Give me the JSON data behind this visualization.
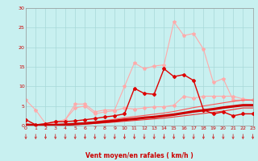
{
  "xlabel": "Vent moyen/en rafales ( km/h )",
  "xlim": [
    0,
    23
  ],
  "ylim": [
    0,
    30
  ],
  "yticks": [
    0,
    5,
    10,
    15,
    20,
    25,
    30
  ],
  "xticks": [
    0,
    1,
    2,
    3,
    4,
    5,
    6,
    7,
    8,
    9,
    10,
    11,
    12,
    13,
    14,
    15,
    16,
    17,
    18,
    19,
    20,
    21,
    22,
    23
  ],
  "background_color": "#c8f0f0",
  "grid_color": "#a8d8d8",
  "series": [
    {
      "x": [
        0,
        1,
        2,
        3,
        4,
        5,
        6,
        7,
        8,
        9,
        10,
        11,
        12,
        13,
        14,
        15,
        16,
        17,
        18,
        19,
        20,
        21,
        22,
        23
      ],
      "y": [
        6.5,
        4.0,
        0.5,
        1.0,
        1.5,
        5.5,
        5.5,
        3.5,
        4.0,
        4.0,
        10.0,
        16.0,
        14.5,
        15.2,
        15.5,
        26.5,
        23.0,
        23.5,
        19.5,
        11.0,
        12.0,
        6.5,
        6.5,
        6.5
      ],
      "color": "#ffaaaa",
      "marker": "*",
      "markersize": 3,
      "linewidth": 0.8,
      "zorder": 2
    },
    {
      "x": [
        0,
        1,
        2,
        3,
        4,
        5,
        6,
        7,
        8,
        9,
        10,
        11,
        12,
        13,
        14,
        15,
        16,
        17,
        18,
        19,
        20,
        21,
        22,
        23
      ],
      "y": [
        1.5,
        0.2,
        0.5,
        1.0,
        1.0,
        1.2,
        1.5,
        1.8,
        2.2,
        2.5,
        3.0,
        9.5,
        8.2,
        8.0,
        14.5,
        12.5,
        13.0,
        11.5,
        4.0,
        3.0,
        3.5,
        2.5,
        3.0,
        3.0
      ],
      "color": "#dd0000",
      "marker": "D",
      "markersize": 2,
      "linewidth": 1.0,
      "zorder": 4
    },
    {
      "x": [
        0,
        1,
        2,
        3,
        4,
        5,
        6,
        7,
        8,
        9,
        10,
        11,
        12,
        13,
        14,
        15,
        16,
        17,
        18,
        19,
        20,
        21,
        22,
        23
      ],
      "y": [
        0.5,
        0.1,
        0.2,
        0.8,
        1.5,
        4.5,
        5.0,
        3.0,
        3.5,
        3.8,
        4.5,
        4.2,
        4.5,
        4.8,
        4.8,
        5.2,
        7.5,
        7.0,
        7.5,
        7.5,
        7.5,
        7.5,
        6.8,
        6.5
      ],
      "color": "#ffaaaa",
      "marker": "D",
      "markersize": 2,
      "linewidth": 0.8,
      "zorder": 2
    },
    {
      "x": [
        0,
        1,
        2,
        3,
        4,
        5,
        6,
        7,
        8,
        9,
        10,
        11,
        12,
        13,
        14,
        15,
        16,
        17,
        18,
        19,
        20,
        21,
        22,
        23
      ],
      "y": [
        0.3,
        0.1,
        0.1,
        0.2,
        0.3,
        0.5,
        0.7,
        1.0,
        1.3,
        1.6,
        2.0,
        2.3,
        2.6,
        2.9,
        3.2,
        3.6,
        4.1,
        4.6,
        5.0,
        5.4,
        5.8,
        6.2,
        6.5,
        6.5
      ],
      "color": "#ff5555",
      "marker": null,
      "markersize": 0,
      "linewidth": 0.8,
      "zorder": 3
    },
    {
      "x": [
        0,
        1,
        2,
        3,
        4,
        5,
        6,
        7,
        8,
        9,
        10,
        11,
        12,
        13,
        14,
        15,
        16,
        17,
        18,
        19,
        20,
        21,
        22,
        23
      ],
      "y": [
        0.2,
        0.1,
        0.1,
        0.15,
        0.25,
        0.4,
        0.55,
        0.75,
        1.0,
        1.2,
        1.5,
        1.7,
        2.0,
        2.2,
        2.5,
        2.8,
        3.2,
        3.6,
        3.9,
        4.2,
        4.6,
        4.9,
        5.2,
        5.2
      ],
      "color": "#cc0000",
      "marker": null,
      "markersize": 0,
      "linewidth": 2.2,
      "zorder": 5
    },
    {
      "x": [
        0,
        1,
        2,
        3,
        4,
        5,
        6,
        7,
        8,
        9,
        10,
        11,
        12,
        13,
        14,
        15,
        16,
        17,
        18,
        19,
        20,
        21,
        22,
        23
      ],
      "y": [
        0.1,
        0.05,
        0.08,
        0.12,
        0.18,
        0.28,
        0.4,
        0.55,
        0.7,
        0.9,
        1.1,
        1.3,
        1.5,
        1.7,
        1.9,
        2.2,
        2.5,
        2.8,
        3.1,
        3.4,
        3.7,
        4.1,
        4.5,
        4.5
      ],
      "color": "#ee3333",
      "marker": null,
      "markersize": 0,
      "linewidth": 0.8,
      "zorder": 3
    }
  ]
}
